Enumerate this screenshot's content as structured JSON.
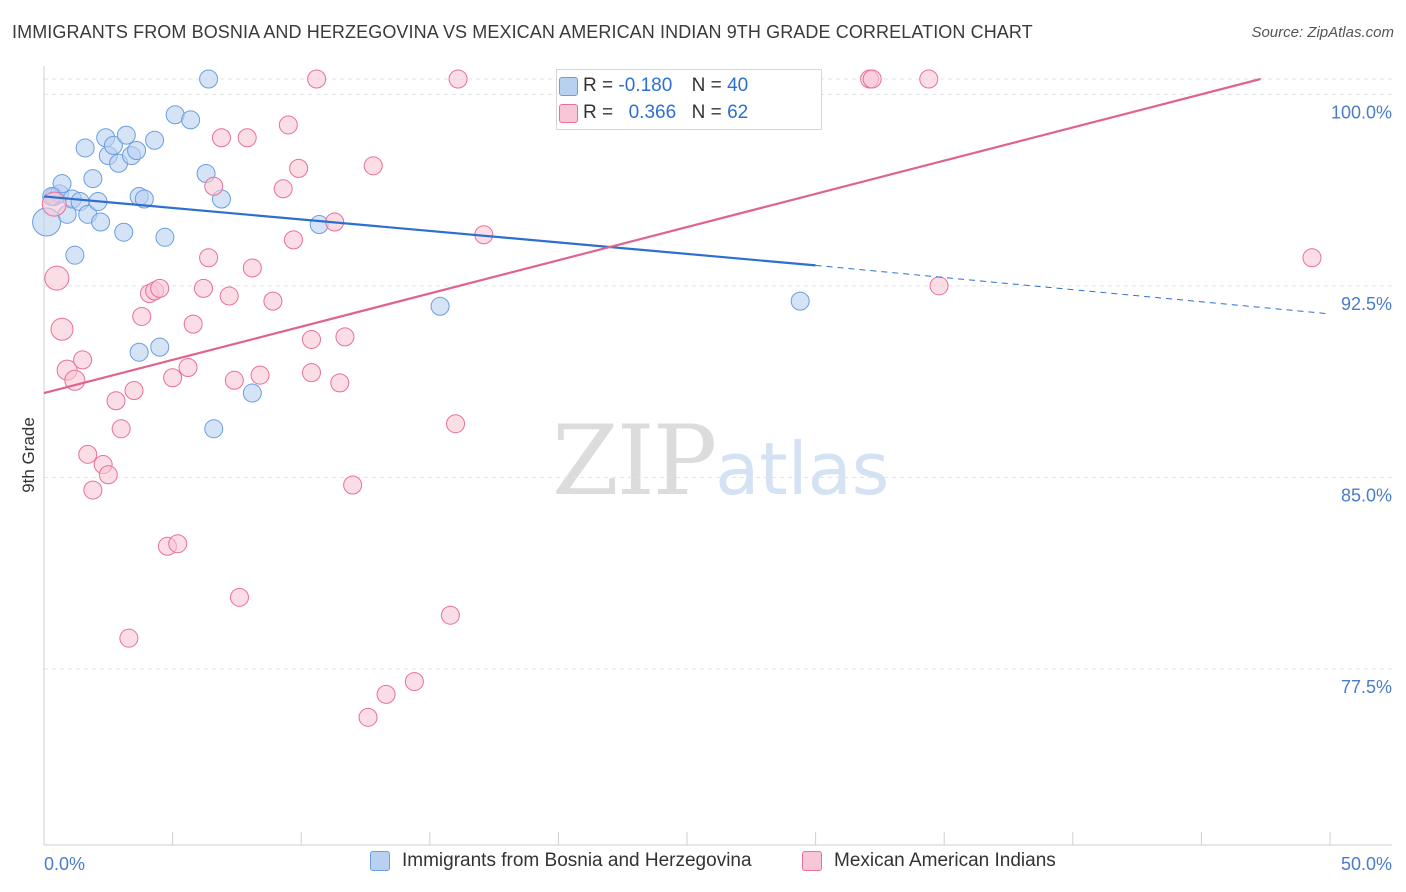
{
  "header": {
    "title": "IMMIGRANTS FROM BOSNIA AND HERZEGOVINA VS MEXICAN AMERICAN INDIAN 9TH GRADE CORRELATION CHART",
    "source": "Source: ZipAtlas.com"
  },
  "watermark": {
    "zip": "ZIP",
    "atlas": "atlas"
  },
  "stats": {
    "r_label": "R =",
    "n_label": "N =",
    "series1": {
      "r": "-0.180",
      "n": "40",
      "color": "#a9c6ee"
    },
    "series2": {
      "r": "0.366",
      "n": "62",
      "color": "#f6b9cc"
    }
  },
  "chart_data": {
    "type": "scatter",
    "title": "IMMIGRANTS FROM BOSNIA AND HERZEGOVINA VS MEXICAN AMERICAN INDIAN 9TH GRADE CORRELATION CHART",
    "xlabel": "",
    "ylabel": "9th Grade",
    "xlim": [
      0,
      50
    ],
    "ylim": [
      70.6,
      100.6
    ],
    "x_tick_labels": [
      "0.0%",
      "50.0%"
    ],
    "y_ticks": [
      77.5,
      85.0,
      92.5,
      100.0
    ],
    "y_tick_labels": [
      "77.5%",
      "85.0%",
      "92.5%",
      "100.0%"
    ],
    "grid": "horizontal dashed",
    "legend_position": "bottom",
    "series": [
      {
        "name": "Immigrants from Bosnia and Herzegovina",
        "color": "#6a9ee0",
        "fill": "#b9d1f1",
        "trend": {
          "x": [
            0,
            30
          ],
          "y": [
            96.0,
            93.3
          ],
          "dashed_extension_x": [
            30,
            50
          ],
          "dashed_extension_y": [
            93.3,
            91.4
          ]
        },
        "points": [
          [
            0.1,
            95.0,
            14
          ],
          [
            0.4,
            96.0,
            9
          ],
          [
            0.6,
            96.1,
            9
          ],
          [
            0.7,
            96.5,
            9
          ],
          [
            0.9,
            95.3,
            9
          ],
          [
            1.1,
            95.9,
            9
          ],
          [
            1.2,
            93.7,
            9
          ],
          [
            1.4,
            95.8,
            9
          ],
          [
            1.6,
            97.9,
            9
          ],
          [
            1.7,
            95.3,
            9
          ],
          [
            1.9,
            96.7,
            9
          ],
          [
            2.1,
            95.8,
            9
          ],
          [
            2.2,
            95.0,
            9
          ],
          [
            2.4,
            98.3,
            9
          ],
          [
            2.5,
            97.6,
            9
          ],
          [
            2.7,
            98.0,
            9
          ],
          [
            2.9,
            97.3,
            9
          ],
          [
            3.1,
            94.6,
            9
          ],
          [
            3.2,
            98.4,
            9
          ],
          [
            3.4,
            97.6,
            9
          ],
          [
            3.6,
            97.8,
            9
          ],
          [
            3.7,
            96.0,
            9
          ],
          [
            3.9,
            95.9,
            9
          ],
          [
            4.3,
            98.2,
            9
          ],
          [
            4.7,
            94.4,
            9
          ],
          [
            3.7,
            89.9,
            9
          ],
          [
            4.5,
            90.1,
            9
          ],
          [
            5.1,
            99.2,
            9
          ],
          [
            5.7,
            99.0,
            9
          ],
          [
            6.4,
            100.6,
            9
          ],
          [
            6.3,
            96.9,
            9
          ],
          [
            6.9,
            95.9,
            9
          ],
          [
            8.1,
            88.3,
            9
          ],
          [
            6.6,
            86.9,
            9
          ],
          [
            10.7,
            94.9,
            9
          ],
          [
            15.4,
            91.7,
            9
          ],
          [
            20.6,
            100.6,
            9
          ],
          [
            21.1,
            100.6,
            9
          ],
          [
            29.4,
            91.9,
            9
          ],
          [
            0.3,
            96.0,
            9
          ]
        ]
      },
      {
        "name": "Mexican American Indians",
        "color": "#e96f9a",
        "fill": "#f8c7d6",
        "trend": {
          "x": [
            0,
            47.3
          ],
          "y": [
            88.3,
            100.6
          ]
        },
        "points": [
          [
            0.4,
            95.7,
            12
          ],
          [
            0.5,
            92.8,
            12
          ],
          [
            0.7,
            90.8,
            11
          ],
          [
            0.9,
            89.2,
            10
          ],
          [
            1.2,
            88.8,
            10
          ],
          [
            1.5,
            89.6,
            9
          ],
          [
            1.7,
            85.9,
            9
          ],
          [
            1.9,
            84.5,
            9
          ],
          [
            2.3,
            85.5,
            9
          ],
          [
            2.5,
            85.1,
            9
          ],
          [
            2.8,
            88.0,
            9
          ],
          [
            3.0,
            86.9,
            9
          ],
          [
            3.3,
            78.7,
            9
          ],
          [
            3.5,
            88.4,
            9
          ],
          [
            3.8,
            91.3,
            9
          ],
          [
            4.1,
            92.2,
            9
          ],
          [
            4.3,
            92.3,
            9
          ],
          [
            4.5,
            92.4,
            9
          ],
          [
            4.8,
            82.3,
            9
          ],
          [
            5.0,
            88.9,
            9
          ],
          [
            5.2,
            82.4,
            9
          ],
          [
            5.6,
            89.3,
            9
          ],
          [
            5.8,
            91.0,
            9
          ],
          [
            6.2,
            92.4,
            9
          ],
          [
            6.4,
            93.6,
            9
          ],
          [
            6.6,
            96.4,
            9
          ],
          [
            6.9,
            98.3,
            9
          ],
          [
            7.2,
            92.1,
            9
          ],
          [
            7.4,
            88.8,
            9
          ],
          [
            7.6,
            80.3,
            9
          ],
          [
            7.9,
            98.3,
            9
          ],
          [
            8.1,
            93.2,
            9
          ],
          [
            8.4,
            89.0,
            9
          ],
          [
            8.9,
            91.9,
            9
          ],
          [
            9.3,
            96.3,
            9
          ],
          [
            9.5,
            98.8,
            9
          ],
          [
            9.7,
            94.3,
            9
          ],
          [
            9.9,
            97.1,
            9
          ],
          [
            10.4,
            89.1,
            9
          ],
          [
            10.4,
            90.4,
            9
          ],
          [
            10.6,
            100.6,
            9
          ],
          [
            11.3,
            95.0,
            9
          ],
          [
            11.5,
            88.7,
            9
          ],
          [
            11.7,
            90.5,
            9
          ],
          [
            12.0,
            84.7,
            9
          ],
          [
            12.6,
            75.6,
            9
          ],
          [
            12.8,
            97.2,
            9
          ],
          [
            13.3,
            76.5,
            9
          ],
          [
            14.4,
            77.0,
            9
          ],
          [
            15.8,
            79.6,
            9
          ],
          [
            16.0,
            87.1,
            9
          ],
          [
            16.1,
            100.6,
            9
          ],
          [
            17.1,
            94.5,
            9
          ],
          [
            21.8,
            100.6,
            9
          ],
          [
            21.6,
            100.6,
            9
          ],
          [
            23.3,
            100.6,
            9
          ],
          [
            28.8,
            100.6,
            9
          ],
          [
            32.1,
            100.6,
            9
          ],
          [
            32.2,
            100.6,
            9
          ],
          [
            34.4,
            100.6,
            9
          ],
          [
            34.8,
            92.5,
            9
          ],
          [
            49.3,
            93.6,
            9
          ]
        ]
      }
    ]
  },
  "legend_bottom": {
    "item1": {
      "label": "Immigrants from Bosnia and Herzegovina",
      "color": "#b9d1f1",
      "border": "#6a9ee0"
    },
    "item2": {
      "label": "Mexican American Indians",
      "color": "#f8c7d6",
      "border": "#e96f9a"
    }
  }
}
